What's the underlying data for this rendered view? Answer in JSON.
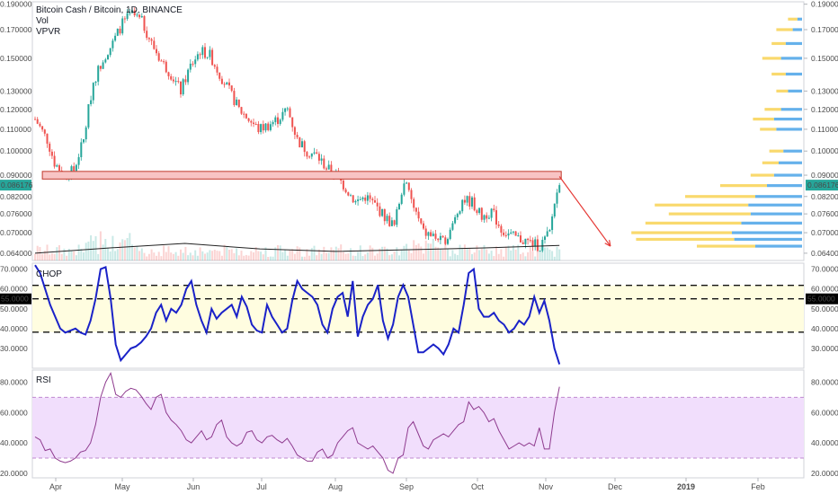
{
  "header": {
    "title": "Bitcoin Cash / Bitcoin, 1D, BINANCE",
    "indicator_vol": "Vol",
    "indicator_vpvr": "VPVR"
  },
  "colors": {
    "up": "#26a69a",
    "down": "#ef5350",
    "chop_line": "#1a22c8",
    "chop_band": "#fffde0",
    "rsi_line": "#8e3a8e",
    "rsi_band": "#f1defc",
    "zone_fill": "#f8c4c4",
    "zone_stroke": "#c0392b",
    "arrow": "#e53935",
    "price_tag": "#26a69a",
    "level_tag": "#000000",
    "vpvr_blue": "#4aa3e8",
    "vpvr_yellow": "#f7cf48"
  },
  "chart_data": [
    {
      "type": "candlestick",
      "title": "Bitcoin Cash / Bitcoin, 1D, BINANCE",
      "ylim": [
        0.062,
        0.192
      ],
      "y_ticks": [
        "0.190000",
        "0.170000",
        "0.150000",
        "0.130000",
        "0.120000",
        "0.110000",
        "0.100000",
        "0.090000",
        "0.082000",
        "0.076000",
        "0.070000",
        "0.064000"
      ],
      "last_price_label": "0.086176",
      "x_labels": [
        "Apr",
        "May",
        "Jun",
        "Jul",
        "Aug",
        "Sep",
        "Oct",
        "Nov",
        "Dec",
        "2019",
        "Feb"
      ],
      "close_path": [
        [
          0,
          0.115
        ],
        [
          5,
          0.105
        ],
        [
          8,
          0.095
        ],
        [
          12,
          0.09
        ],
        [
          16,
          0.092
        ],
        [
          20,
          0.105
        ],
        [
          24,
          0.135
        ],
        [
          28,
          0.15
        ],
        [
          32,
          0.16
        ],
        [
          36,
          0.175
        ],
        [
          40,
          0.182
        ],
        [
          44,
          0.176
        ],
        [
          48,
          0.16
        ],
        [
          52,
          0.148
        ],
        [
          56,
          0.14
        ],
        [
          60,
          0.13
        ],
        [
          64,
          0.145
        ],
        [
          68,
          0.155
        ],
        [
          72,
          0.152
        ],
        [
          76,
          0.14
        ],
        [
          80,
          0.13
        ],
        [
          84,
          0.12
        ],
        [
          88,
          0.115
        ],
        [
          92,
          0.11
        ],
        [
          96,
          0.112
        ],
        [
          100,
          0.115
        ],
        [
          104,
          0.12
        ],
        [
          108,
          0.105
        ],
        [
          112,
          0.1
        ],
        [
          116,
          0.098
        ],
        [
          120,
          0.093
        ],
        [
          124,
          0.09
        ],
        [
          128,
          0.085
        ],
        [
          132,
          0.08
        ],
        [
          136,
          0.082
        ],
        [
          140,
          0.079
        ],
        [
          144,
          0.075
        ],
        [
          148,
          0.072
        ],
        [
          152,
          0.088
        ],
        [
          156,
          0.078
        ],
        [
          160,
          0.07
        ],
        [
          164,
          0.069
        ],
        [
          168,
          0.067
        ],
        [
          172,
          0.072
        ],
        [
          176,
          0.081
        ],
        [
          180,
          0.08
        ],
        [
          184,
          0.075
        ],
        [
          188,
          0.077
        ],
        [
          192,
          0.071
        ],
        [
          196,
          0.069
        ],
        [
          200,
          0.068
        ],
        [
          204,
          0.067
        ],
        [
          208,
          0.066
        ],
        [
          212,
          0.07
        ],
        [
          214,
          0.08
        ],
        [
          216,
          0.086176
        ]
      ],
      "resistance_zone": [
        0.0885,
        0.0915
      ],
      "projection": {
        "from": [
          0.0895,
          216
        ],
        "to": [
          0.066,
          237
        ]
      },
      "volume_ma": [
        0.064,
        0.0655,
        0.0668,
        0.0652,
        0.0645,
        0.065,
        0.0655,
        0.0662
      ]
    },
    {
      "type": "line",
      "title": "CHOP",
      "ylim": [
        20,
        73
      ],
      "y_ticks": [
        "70.0000",
        "60.0000",
        "50.0000",
        "40.0000",
        "30.0000"
      ],
      "levels": [
        61.8,
        55,
        38.2
      ],
      "level_label": "55.0000",
      "values": [
        72,
        68,
        60,
        52,
        46,
        40,
        38,
        39,
        40,
        38,
        37,
        44,
        55,
        70,
        71,
        55,
        32,
        24,
        27,
        30,
        31,
        33,
        36,
        40,
        48,
        52,
        44,
        50,
        48,
        52,
        60,
        64,
        52,
        44,
        38,
        50,
        45,
        48,
        50,
        52,
        46,
        56,
        51,
        42,
        39,
        38,
        52,
        46,
        42,
        38,
        40,
        54,
        64,
        60,
        58,
        56,
        52,
        42,
        38,
        50,
        56,
        58,
        46,
        64,
        36,
        46,
        52,
        55,
        62,
        44,
        35,
        42,
        56,
        62,
        56,
        42,
        28,
        28,
        30,
        32,
        30,
        27,
        32,
        40,
        38,
        52,
        68,
        70,
        50,
        46,
        46,
        48,
        44,
        42,
        38,
        40,
        44,
        42,
        46,
        56,
        48,
        54,
        44,
        30,
        22
      ]
    },
    {
      "type": "line",
      "title": "RSI",
      "ylim": [
        17,
        88
      ],
      "y_ticks": [
        "80.0000",
        "60.0000",
        "40.0000",
        "20.0000"
      ],
      "band": [
        30,
        70
      ],
      "values": [
        44,
        42,
        35,
        36,
        30,
        28,
        27,
        28,
        30,
        34,
        35,
        40,
        52,
        70,
        80,
        86,
        72,
        70,
        74,
        76,
        75,
        71,
        66,
        62,
        70,
        72,
        60,
        55,
        52,
        48,
        42,
        40,
        44,
        48,
        42,
        44,
        52,
        55,
        44,
        40,
        38,
        40,
        47,
        48,
        42,
        40,
        44,
        45,
        42,
        40,
        43,
        38,
        32,
        30,
        28,
        28,
        34,
        36,
        30,
        32,
        40,
        44,
        48,
        50,
        40,
        38,
        36,
        38,
        34,
        30,
        22,
        20,
        30,
        32,
        50,
        54,
        46,
        38,
        36,
        42,
        44,
        46,
        44,
        48,
        52,
        54,
        67,
        62,
        64,
        60,
        54,
        56,
        48,
        42,
        36,
        38,
        40,
        38,
        40,
        38,
        50,
        36,
        36,
        60,
        77
      ]
    }
  ],
  "vpvr_profile": [
    {
      "price": 0.178,
      "buy": 4,
      "sell": 8
    },
    {
      "price": 0.17,
      "buy": 8,
      "sell": 14
    },
    {
      "price": 0.16,
      "buy": 14,
      "sell": 12
    },
    {
      "price": 0.15,
      "buy": 18,
      "sell": 16
    },
    {
      "price": 0.14,
      "buy": 14,
      "sell": 12
    },
    {
      "price": 0.13,
      "buy": 12,
      "sell": 10
    },
    {
      "price": 0.12,
      "buy": 18,
      "sell": 14
    },
    {
      "price": 0.115,
      "buy": 24,
      "sell": 18
    },
    {
      "price": 0.11,
      "buy": 22,
      "sell": 14
    },
    {
      "price": 0.1,
      "buy": 16,
      "sell": 12
    },
    {
      "price": 0.095,
      "buy": 20,
      "sell": 14
    },
    {
      "price": 0.09,
      "buy": 24,
      "sell": 20
    },
    {
      "price": 0.086,
      "buy": 30,
      "sell": 40
    },
    {
      "price": 0.082,
      "buy": 40,
      "sell": 60
    },
    {
      "price": 0.079,
      "buy": 46,
      "sell": 80
    },
    {
      "price": 0.076,
      "buy": 44,
      "sell": 70
    },
    {
      "price": 0.073,
      "buy": 52,
      "sell": 82
    },
    {
      "price": 0.07,
      "buy": 60,
      "sell": 86
    },
    {
      "price": 0.068,
      "buy": 58,
      "sell": 84
    },
    {
      "price": 0.066,
      "buy": 40,
      "sell": 50
    }
  ]
}
